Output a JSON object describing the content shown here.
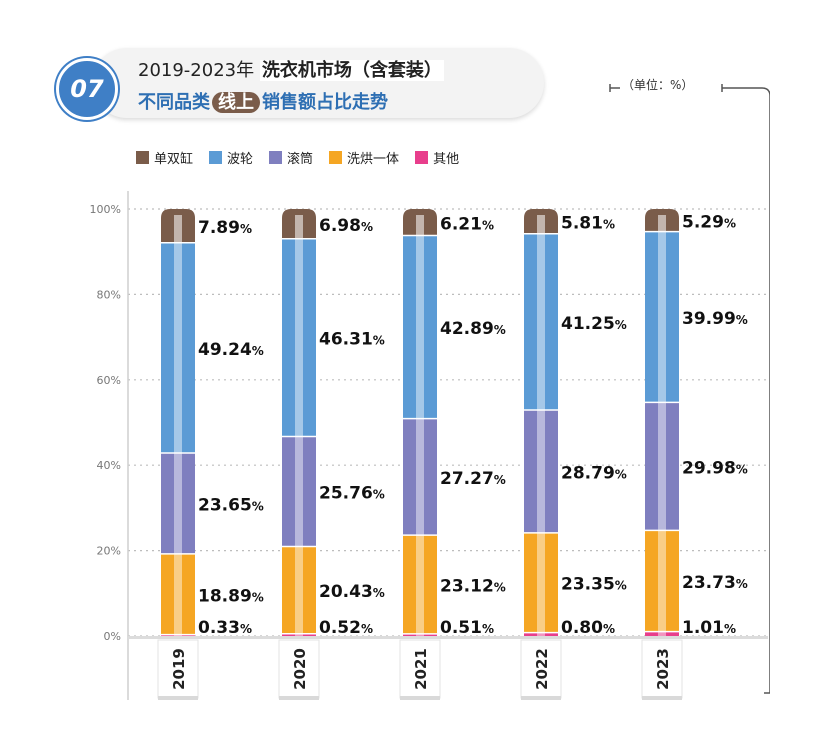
{
  "header": {
    "number": "07",
    "title_line1_prefix": "2019-2023年",
    "title_line1_highlight": "洗衣机市场（含套装）",
    "title_line2_prefix": "不同品类",
    "title_line2_pill": "线上",
    "title_line2_suffix": "销售额占比走势",
    "unit": "（单位：%）"
  },
  "colors": {
    "单双缸": "#7a5c4a",
    "波轮": "#5b9bd5",
    "滚筒": "#7f7fbf",
    "洗烘一体": "#f5a623",
    "其他": "#e83e8c"
  },
  "chart_data": {
    "type": "bar",
    "stacked": true,
    "categories": [
      "2019",
      "2020",
      "2021",
      "2022",
      "2023"
    ],
    "series": [
      {
        "name": "其他",
        "values": [
          0.33,
          0.52,
          0.51,
          0.8,
          1.01
        ],
        "labels": [
          "0.33",
          "0.52",
          "0.51",
          "0.80",
          "1.01"
        ]
      },
      {
        "name": "洗烘一体",
        "values": [
          18.89,
          20.43,
          23.12,
          23.35,
          23.73
        ],
        "labels": [
          "18.89",
          "20.43",
          "23.12",
          "23.35",
          "23.73"
        ]
      },
      {
        "name": "滚筒",
        "values": [
          23.65,
          25.76,
          27.27,
          28.79,
          29.98
        ],
        "labels": [
          "23.65",
          "25.76",
          "27.27",
          "28.79",
          "29.98"
        ]
      },
      {
        "name": "波轮",
        "values": [
          49.24,
          46.31,
          42.89,
          41.25,
          39.99
        ],
        "labels": [
          "49.24",
          "46.31",
          "42.89",
          "41.25",
          "39.99"
        ]
      },
      {
        "name": "单双缸",
        "values": [
          7.89,
          6.98,
          6.21,
          5.81,
          5.29
        ],
        "labels": [
          "7.89",
          "6.98",
          "6.21",
          "5.81",
          "5.29"
        ]
      }
    ],
    "legend": [
      "单双缸",
      "波轮",
      "滚筒",
      "洗烘一体",
      "其他"
    ],
    "legend_placement": "top",
    "y_ticks": [
      "0%",
      "20%",
      "40%",
      "60%",
      "80%",
      "100%"
    ],
    "ylim": [
      0,
      100
    ],
    "grid": true
  }
}
